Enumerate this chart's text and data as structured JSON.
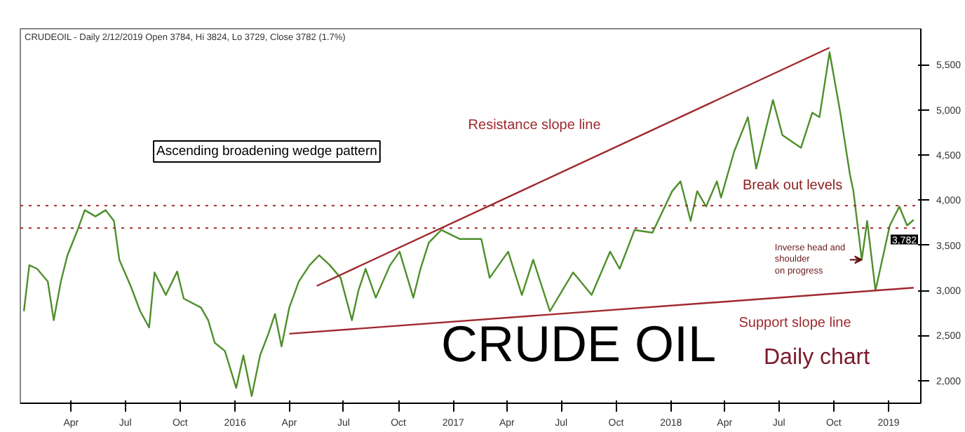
{
  "chart_data": {
    "type": "line",
    "title": "CRUDE OIL",
    "subtitle": "Daily chart",
    "xlim": [
      "2015-01-06",
      "2019-02-24"
    ],
    "xticks": [
      {
        "value": "2015-04-01",
        "label": "Apr"
      },
      {
        "value": "2015-07-01",
        "label": "Jul"
      },
      {
        "value": "2015-10-01",
        "label": "Oct"
      },
      {
        "value": "2016-01-01",
        "label": "2016"
      },
      {
        "value": "2016-04-01",
        "label": "Apr"
      },
      {
        "value": "2016-07-01",
        "label": "Jul"
      },
      {
        "value": "2016-10-01",
        "label": "Oct"
      },
      {
        "value": "2017-01-01",
        "label": "2017"
      },
      {
        "value": "2017-04-01",
        "label": "Apr"
      },
      {
        "value": "2017-07-01",
        "label": "Jul"
      },
      {
        "value": "2017-10-01",
        "label": "Oct"
      },
      {
        "value": "2018-01-01",
        "label": "2018"
      },
      {
        "value": "2018-04-01",
        "label": "Apr"
      },
      {
        "value": "2018-07-01",
        "label": "Jul"
      },
      {
        "value": "2018-10-01",
        "label": "Oct"
      },
      {
        "value": "2019-01-01",
        "label": "2019"
      }
    ],
    "ylim": [
      1750,
      5900
    ],
    "yticks": [
      {
        "value": 2000,
        "label": "2,000"
      },
      {
        "value": 2500,
        "label": "2,500"
      },
      {
        "value": 3000,
        "label": "3,000"
      },
      {
        "value": 3500,
        "label": "3,500"
      },
      {
        "value": 4000,
        "label": "4,000"
      },
      {
        "value": 4500,
        "label": "4,500"
      },
      {
        "value": 5000,
        "label": "5,000"
      },
      {
        "value": 5500,
        "label": "5,500"
      }
    ],
    "grid": false,
    "series": [
      {
        "color": "#4e8f2a",
        "x": [
          "2015-01-12",
          "2015-01-21",
          "2015-02-03",
          "2015-02-21",
          "2015-03-03",
          "2015-03-15",
          "2015-03-26",
          "2015-04-12",
          "2015-04-24",
          "2015-05-12",
          "2015-05-29",
          "2015-06-12",
          "2015-06-21",
          "2015-07-10",
          "2015-07-26",
          "2015-08-10",
          "2015-08-19",
          "2015-09-07",
          "2015-09-26",
          "2015-10-07",
          "2015-11-05",
          "2015-11-17",
          "2015-11-28",
          "2015-12-15",
          "2016-01-03",
          "2016-01-15",
          "2016-01-29",
          "2016-02-12",
          "2016-02-26",
          "2016-03-08",
          "2016-03-19",
          "2016-04-01",
          "2016-04-17",
          "2016-05-05",
          "2016-05-21",
          "2016-06-08",
          "2016-06-26",
          "2016-07-15",
          "2016-07-26",
          "2016-08-07",
          "2016-08-24",
          "2016-09-17",
          "2016-10-03",
          "2016-10-26",
          "2016-11-07",
          "2016-11-21",
          "2016-12-12",
          "2017-01-12",
          "2017-02-17",
          "2017-03-03",
          "2017-04-03",
          "2017-04-26",
          "2017-05-15",
          "2017-06-12",
          "2017-07-21",
          "2017-08-21",
          "2017-09-21",
          "2017-10-07",
          "2017-11-01",
          "2017-12-01",
          "2018-01-03",
          "2018-01-17",
          "2018-02-03",
          "2018-02-14",
          "2018-03-01",
          "2018-03-19",
          "2018-03-26",
          "2018-04-17",
          "2018-05-10",
          "2018-05-24",
          "2018-06-21",
          "2018-07-07",
          "2018-08-07",
          "2018-08-26",
          "2018-09-07",
          "2018-09-24",
          "2018-10-12",
          "2018-10-28",
          "2018-11-03",
          "2018-11-17",
          "2018-11-26",
          "2018-12-10",
          "2019-01-03",
          "2019-01-19",
          "2019-02-01",
          "2019-02-12"
        ],
        "values": [
          2770,
          3280,
          3240,
          3100,
          2670,
          3100,
          3390,
          3670,
          3890,
          3820,
          3890,
          3770,
          3340,
          3050,
          2770,
          2590,
          3200,
          2950,
          3210,
          2910,
          2810,
          2670,
          2420,
          2330,
          1920,
          2280,
          1830,
          2280,
          2520,
          2740,
          2380,
          2810,
          3100,
          3280,
          3390,
          3280,
          3140,
          2670,
          3000,
          3240,
          2920,
          3280,
          3430,
          2920,
          3240,
          3530,
          3670,
          3570,
          3570,
          3140,
          3430,
          2950,
          3340,
          2770,
          3200,
          2950,
          3430,
          3240,
          3670,
          3640,
          4100,
          4210,
          3770,
          4100,
          3930,
          4210,
          4030,
          4540,
          4920,
          4350,
          5110,
          4720,
          4580,
          4970,
          4920,
          5640,
          4970,
          4290,
          4100,
          3340,
          3770,
          3000,
          3720,
          3930,
          3720,
          3782
        ]
      },
      {
        "name": "Resistance slope line",
        "color": "#a0282d",
        "x": [
          "2016-05-17",
          "2018-09-24"
        ],
        "values": [
          3050,
          5690
        ]
      },
      {
        "name": "Support slope line",
        "color": "#a0282d",
        "x": [
          "2016-04-01",
          "2019-02-12"
        ],
        "values": [
          2520,
          3030
        ]
      }
    ],
    "ref_lines": [
      {
        "axis": "y",
        "value": 3940,
        "label": null,
        "color": "#a0282d",
        "line_style": "dotted"
      },
      {
        "axis": "y",
        "value": 3690,
        "label": null,
        "color": "#a0282d",
        "line_style": "dotted"
      }
    ],
    "annotations": [
      "CRUDEOIL - Daily 2/12/2019 Open 3784, Hi 3824, Lo 3729, Close 3782 (1.7%)",
      "Ascending broadening wedge pattern",
      "Break out levels",
      {
        "text": "Inverse head and\nshoulder\non progress",
        "x": "2018-11-17",
        "y": 3340
      },
      {
        "text": "3,782",
        "x": "2019-02-12",
        "y": 3782
      }
    ]
  }
}
